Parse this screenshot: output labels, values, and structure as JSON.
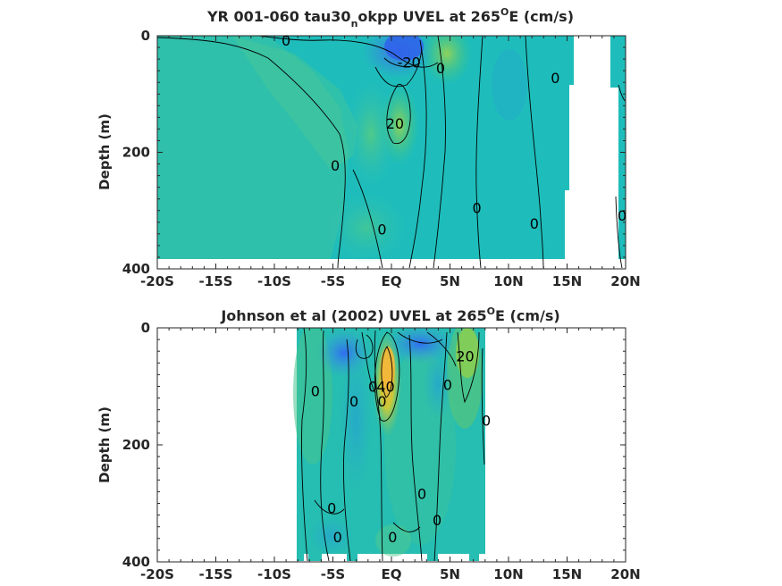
{
  "chart_data": [
    {
      "type": "heatmap",
      "title_parts": {
        "pre": "YR 001-060 tau30",
        "sub": "n",
        "mid": "okpp UVEL at 265",
        "sup": "O",
        "post": "E (cm/s)"
      },
      "xlabel": "",
      "ylabel": "Depth (m)",
      "x_ticks": [
        "-20S",
        "-15S",
        "-10S",
        "-5S",
        "EQ",
        "5N",
        "10N",
        "15N",
        "20N"
      ],
      "y_ticks": [
        "0",
        "200",
        "400"
      ],
      "xlim": [
        -20,
        20
      ],
      "ylim": [
        400,
        0
      ],
      "contour_labels": [
        {
          "text": "0",
          "x": -9,
          "y": 8
        },
        {
          "text": "-20",
          "x": 1.5,
          "y": 45
        },
        {
          "text": "0",
          "x": 4.2,
          "y": 55
        },
        {
          "text": "0",
          "x": 14,
          "y": 72
        },
        {
          "text": "20",
          "x": 0.3,
          "y": 150
        },
        {
          "text": "0",
          "x": -4.8,
          "y": 222
        },
        {
          "text": "0",
          "x": 7.3,
          "y": 295
        },
        {
          "text": "0",
          "x": 12.2,
          "y": 322
        },
        {
          "text": "0",
          "x": 19.7,
          "y": 308
        },
        {
          "text": "0",
          "x": -0.8,
          "y": 332
        }
      ]
    },
    {
      "type": "heatmap",
      "title_parts": {
        "pre": "Johnson et al (2002) UVEL at 265",
        "sub": "",
        "mid": "",
        "sup": "O",
        "post": "E (cm/s)"
      },
      "xlabel": "",
      "ylabel": "Depth (m)",
      "x_ticks": [
        "-20S",
        "-15S",
        "-10S",
        "-5S",
        "EQ",
        "5N",
        "10N",
        "15N",
        "20N"
      ],
      "y_ticks": [
        "0",
        "200",
        "400"
      ],
      "xlim": [
        -20,
        20
      ],
      "ylim": [
        400,
        0
      ],
      "contour_labels": [
        {
          "text": "20",
          "x": 6.3,
          "y": 48
        },
        {
          "text": "0",
          "x": -6.5,
          "y": 108
        },
        {
          "text": "0",
          "x": -1.6,
          "y": 100
        },
        {
          "text": "40",
          "x": -0.5,
          "y": 100
        },
        {
          "text": "0",
          "x": -0.8,
          "y": 125
        },
        {
          "text": "0",
          "x": -3.2,
          "y": 125
        },
        {
          "text": "0",
          "x": 4.8,
          "y": 97
        },
        {
          "text": "0",
          "x": 8.1,
          "y": 158
        },
        {
          "text": "0",
          "x": 2.6,
          "y": 283
        },
        {
          "text": "0",
          "x": -5.1,
          "y": 308
        },
        {
          "text": "0",
          "x": 3.9,
          "y": 328
        },
        {
          "text": "0",
          "x": -4.6,
          "y": 357
        },
        {
          "text": "0",
          "x": 0.1,
          "y": 357
        }
      ]
    }
  ]
}
